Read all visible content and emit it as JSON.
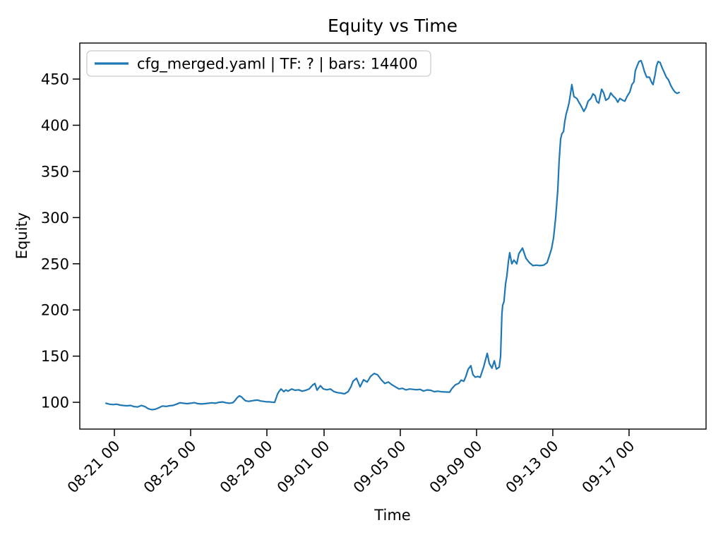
{
  "chart_data": {
    "type": "line",
    "title": "Equity vs Time",
    "xlabel": "Time",
    "ylabel": "Equity",
    "grid": false,
    "legend": {
      "label": "cfg_merged.yaml | TF: ? | bars: 14400",
      "position": "upper left"
    },
    "line_color": "#1f77b4",
    "axis_color": "#000000",
    "legend_border_color": "#cccccc",
    "x_unit": "days since 08-21 00:00",
    "xlim": [
      -1.815,
      31.04
    ],
    "ylim": [
      71,
      489
    ],
    "y_ticks": [
      100,
      150,
      200,
      250,
      300,
      350,
      400,
      450
    ],
    "x_ticks": [
      {
        "t": 0,
        "label": "08-21 00"
      },
      {
        "t": 4,
        "label": "08-25 00"
      },
      {
        "t": 8,
        "label": "08-29 00"
      },
      {
        "t": 11,
        "label": "09-01 00"
      },
      {
        "t": 15,
        "label": "09-05 00"
      },
      {
        "t": 19,
        "label": "09-09 00"
      },
      {
        "t": 23,
        "label": "09-13 00"
      },
      {
        "t": 27,
        "label": "09-17 00"
      }
    ],
    "series": [
      {
        "name": "cfg_merged.yaml | TF: ? | bars: 14400",
        "points": [
          [
            -0.44,
            99
          ],
          [
            -0.26,
            98
          ],
          [
            -0.07,
            97.5
          ],
          [
            0.11,
            98
          ],
          [
            0.3,
            97
          ],
          [
            0.48,
            96.5
          ],
          [
            0.67,
            96.2
          ],
          [
            0.85,
            96.6
          ],
          [
            1.04,
            95.3
          ],
          [
            1.22,
            95
          ],
          [
            1.41,
            96.5
          ],
          [
            1.59,
            95.5
          ],
          [
            1.78,
            93
          ],
          [
            1.96,
            92
          ],
          [
            2.15,
            92.5
          ],
          [
            2.33,
            94
          ],
          [
            2.52,
            96
          ],
          [
            2.7,
            95.5
          ],
          [
            2.89,
            96.2
          ],
          [
            3.07,
            96.6
          ],
          [
            3.26,
            98
          ],
          [
            3.44,
            99.5
          ],
          [
            3.63,
            99
          ],
          [
            3.81,
            98.5
          ],
          [
            4.0,
            99
          ],
          [
            4.19,
            99.6
          ],
          [
            4.37,
            98.6
          ],
          [
            4.56,
            98.2
          ],
          [
            4.74,
            98.5
          ],
          [
            4.93,
            99
          ],
          [
            5.11,
            99.4
          ],
          [
            5.3,
            99
          ],
          [
            5.48,
            100
          ],
          [
            5.67,
            100.4
          ],
          [
            5.85,
            99.5
          ],
          [
            6.04,
            99
          ],
          [
            6.22,
            99.6
          ],
          [
            6.33,
            102
          ],
          [
            6.44,
            105
          ],
          [
            6.56,
            107
          ],
          [
            6.67,
            105.8
          ],
          [
            6.78,
            103.5
          ],
          [
            6.89,
            101.6
          ],
          [
            7.04,
            101
          ],
          [
            7.19,
            101.5
          ],
          [
            7.33,
            102
          ],
          [
            7.52,
            102.4
          ],
          [
            7.67,
            101.4
          ],
          [
            7.81,
            101
          ],
          [
            7.96,
            100.6
          ],
          [
            8.11,
            100.5
          ],
          [
            8.26,
            100.2
          ],
          [
            8.41,
            100
          ],
          [
            8.48,
            104
          ],
          [
            8.56,
            109
          ],
          [
            8.63,
            111.5
          ],
          [
            8.74,
            114.4
          ],
          [
            8.89,
            111.6
          ],
          [
            9.0,
            113.4
          ],
          [
            9.11,
            112
          ],
          [
            9.3,
            114.4
          ],
          [
            9.48,
            113
          ],
          [
            9.67,
            113.6
          ],
          [
            9.85,
            112
          ],
          [
            10.04,
            113
          ],
          [
            10.22,
            114.5
          ],
          [
            10.41,
            118.8
          ],
          [
            10.52,
            120.4
          ],
          [
            10.63,
            113.2
          ],
          [
            10.81,
            118
          ],
          [
            10.96,
            114.5
          ],
          [
            11.15,
            113.6
          ],
          [
            11.33,
            114.4
          ],
          [
            11.52,
            111.6
          ],
          [
            11.7,
            110.5
          ],
          [
            11.89,
            110
          ],
          [
            12.07,
            109.2
          ],
          [
            12.26,
            111.4
          ],
          [
            12.41,
            116.8
          ],
          [
            12.52,
            122.8
          ],
          [
            12.7,
            126
          ],
          [
            12.89,
            116.8
          ],
          [
            13.07,
            124.4
          ],
          [
            13.26,
            122
          ],
          [
            13.44,
            128
          ],
          [
            13.63,
            131.2
          ],
          [
            13.81,
            129.8
          ],
          [
            14.0,
            124.4
          ],
          [
            14.19,
            120.4
          ],
          [
            14.37,
            122
          ],
          [
            14.56,
            119
          ],
          [
            14.74,
            116.8
          ],
          [
            14.93,
            114.4
          ],
          [
            15.11,
            115.2
          ],
          [
            15.3,
            113.4
          ],
          [
            15.48,
            114.4
          ],
          [
            15.67,
            114
          ],
          [
            15.85,
            113.6
          ],
          [
            16.04,
            114
          ],
          [
            16.22,
            112.2
          ],
          [
            16.41,
            113.4
          ],
          [
            16.59,
            113
          ],
          [
            16.78,
            111.5
          ],
          [
            16.96,
            112
          ],
          [
            17.15,
            111.4
          ],
          [
            17.33,
            111.2
          ],
          [
            17.59,
            111
          ],
          [
            17.7,
            114.8
          ],
          [
            17.89,
            119
          ],
          [
            18.07,
            120.6
          ],
          [
            18.19,
            124
          ],
          [
            18.33,
            122.8
          ],
          [
            18.44,
            128
          ],
          [
            18.56,
            135.8
          ],
          [
            18.7,
            139.6
          ],
          [
            18.81,
            130
          ],
          [
            18.93,
            127.2
          ],
          [
            19.07,
            128
          ],
          [
            19.19,
            127
          ],
          [
            19.37,
            138
          ],
          [
            19.56,
            153
          ],
          [
            19.67,
            142
          ],
          [
            19.81,
            137
          ],
          [
            19.93,
            145
          ],
          [
            20.04,
            136
          ],
          [
            20.19,
            138
          ],
          [
            20.26,
            150
          ],
          [
            20.3,
            175
          ],
          [
            20.33,
            196
          ],
          [
            20.37,
            205
          ],
          [
            20.44,
            209
          ],
          [
            20.52,
            228
          ],
          [
            20.59,
            237
          ],
          [
            20.67,
            252
          ],
          [
            20.74,
            262
          ],
          [
            20.85,
            250
          ],
          [
            20.96,
            254
          ],
          [
            21.11,
            250
          ],
          [
            21.22,
            261
          ],
          [
            21.41,
            267
          ],
          [
            21.59,
            256
          ],
          [
            21.78,
            251
          ],
          [
            21.96,
            248
          ],
          [
            22.15,
            248.5
          ],
          [
            22.33,
            248
          ],
          [
            22.52,
            248.5
          ],
          [
            22.7,
            251
          ],
          [
            22.81,
            258
          ],
          [
            22.93,
            266
          ],
          [
            23.04,
            278
          ],
          [
            23.15,
            300
          ],
          [
            23.26,
            330
          ],
          [
            23.33,
            360
          ],
          [
            23.41,
            385
          ],
          [
            23.48,
            391
          ],
          [
            23.56,
            393
          ],
          [
            23.63,
            404
          ],
          [
            23.7,
            412
          ],
          [
            23.78,
            418
          ],
          [
            23.85,
            424
          ],
          [
            23.93,
            434
          ],
          [
            24.0,
            444
          ],
          [
            24.11,
            431
          ],
          [
            24.26,
            429
          ],
          [
            24.37,
            425
          ],
          [
            24.48,
            421
          ],
          [
            24.63,
            415
          ],
          [
            24.74,
            419
          ],
          [
            24.85,
            426
          ],
          [
            25.0,
            429
          ],
          [
            25.11,
            434
          ],
          [
            25.22,
            432
          ],
          [
            25.3,
            426
          ],
          [
            25.41,
            424
          ],
          [
            25.56,
            439
          ],
          [
            25.67,
            435
          ],
          [
            25.78,
            427
          ],
          [
            25.93,
            429
          ],
          [
            26.04,
            435
          ],
          [
            26.15,
            432
          ],
          [
            26.3,
            429
          ],
          [
            26.41,
            425
          ],
          [
            26.52,
            429
          ],
          [
            26.67,
            427
          ],
          [
            26.78,
            426
          ],
          [
            26.89,
            431
          ],
          [
            27.04,
            436
          ],
          [
            27.15,
            444
          ],
          [
            27.26,
            447
          ],
          [
            27.33,
            459
          ],
          [
            27.44,
            465
          ],
          [
            27.52,
            469
          ],
          [
            27.63,
            470
          ],
          [
            27.7,
            466
          ],
          [
            27.81,
            458
          ],
          [
            27.93,
            452
          ],
          [
            28.07,
            452
          ],
          [
            28.19,
            446
          ],
          [
            28.26,
            444
          ],
          [
            28.37,
            455
          ],
          [
            28.44,
            464
          ],
          [
            28.52,
            469
          ],
          [
            28.63,
            468
          ],
          [
            28.74,
            462
          ],
          [
            28.85,
            457
          ],
          [
            28.96,
            452
          ],
          [
            29.07,
            449
          ],
          [
            29.19,
            443
          ],
          [
            29.3,
            439
          ],
          [
            29.41,
            436
          ],
          [
            29.52,
            434.5
          ],
          [
            29.63,
            435.5
          ]
        ]
      }
    ]
  }
}
